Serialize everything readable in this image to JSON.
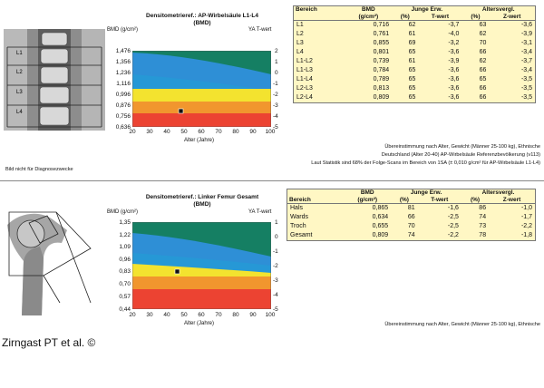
{
  "top": {
    "chart": {
      "title_line1": "Densitometrieref.: AP-Wirbelsäule L1-L4",
      "title_line2": "(BMD)",
      "bmd_axis_label": "BMD (g/cm²)",
      "t_axis_label": "YA T-wert",
      "bmd_ticks": [
        "1,476",
        "1,356",
        "1,236",
        "1,116",
        "0,996",
        "0,876",
        "0,756",
        "0,636"
      ],
      "t_ticks": [
        "2",
        "1",
        "0",
        "-1",
        "-2",
        "-3",
        "-4",
        "-5"
      ],
      "age_ticks": [
        "20",
        "30",
        "40",
        "50",
        "60",
        "70",
        "80",
        "90",
        "100"
      ],
      "age_axis_label": "Alter (Jahre)"
    },
    "xray_labels": [
      "L1",
      "L2",
      "L3",
      "L4"
    ],
    "table": {
      "head_row1": [
        "Bereich",
        "BMD",
        "Junge Erw.",
        "",
        "Altersvergl.",
        ""
      ],
      "head_row2": [
        "",
        "(g/cm²)",
        "(%)",
        "T-wert",
        "(%)",
        "Z-wert"
      ],
      "rows": [
        [
          "L1",
          "0,716",
          "62",
          "-3,7",
          "63",
          "-3,6"
        ],
        [
          "L2",
          "0,761",
          "61",
          "-4,0",
          "62",
          "-3,9"
        ],
        [
          "L3",
          "0,855",
          "69",
          "-3,2",
          "70",
          "-3,1"
        ],
        [
          "L4",
          "0,801",
          "65",
          "-3,6",
          "66",
          "-3,4"
        ],
        [
          "L1-L2",
          "0,739",
          "61",
          "-3,9",
          "62",
          "-3,7"
        ],
        [
          "L1-L3",
          "0,784",
          "65",
          "-3,6",
          "66",
          "-3,4"
        ],
        [
          "L1-L4",
          "0,789",
          "65",
          "-3,6",
          "65",
          "-3,5"
        ],
        [
          "L2-L3",
          "0,813",
          "65",
          "-3,6",
          "66",
          "-3,5"
        ],
        [
          "L2-L4",
          "0,809",
          "65",
          "-3,6",
          "66",
          "-3,5"
        ]
      ]
    },
    "notes": [
      "Übereinstimmung nach Alter, Gewicht (Männer 25-100 kg), Ethnische",
      "Deutschland (Alter 20-40) AP-Wirbelsäule Referenzbevölkerung (v113)",
      "Laut Statistik sind 68% der Folge-Scans im Bereich von 1SA (± 0,010 g/cm² für AP-Wirbelsäule L1-L4)"
    ],
    "disclaimer": "Bild nicht für Diagnosezwecke"
  },
  "bottom": {
    "chart": {
      "title_line1": "Densitometrieref.: Linker Femur Gesamt",
      "title_line2": "(BMD)",
      "bmd_axis_label": "BMD (g/cm²)",
      "t_axis_label": "YA T-wert",
      "bmd_ticks": [
        "1,35",
        "1,22",
        "1,09",
        "0,96",
        "0,83",
        "0,70",
        "0,57",
        "0,44"
      ],
      "t_ticks": [
        "1",
        "0",
        "-1",
        "-2",
        "-3",
        "-4",
        "-5"
      ],
      "age_ticks": [
        "20",
        "30",
        "40",
        "50",
        "60",
        "70",
        "80",
        "90",
        "100"
      ],
      "age_axis_label": "Alter (Jahre)"
    },
    "table": {
      "head_row1": [
        "",
        "BMD",
        "Junge Erw.",
        "",
        "Altersvergl.",
        ""
      ],
      "head_row2": [
        "Bereich",
        "(g/cm²)",
        "(%)",
        "T-wert",
        "(%)",
        "Z-wert"
      ],
      "rows": [
        [
          "Hals",
          "0,865",
          "81",
          "-1,6",
          "86",
          "-1,0"
        ],
        [
          "Wards",
          "0,634",
          "66",
          "-2,5",
          "74",
          "-1,7"
        ],
        [
          "Troch",
          "0,655",
          "70",
          "-2,5",
          "73",
          "-2,2"
        ],
        [
          "Gesamt",
          "0,809",
          "74",
          "-2,2",
          "78",
          "-1,8"
        ]
      ]
    },
    "notes": [
      "Übereinstimmung nach Alter, Gewicht (Männer 25-100 kg), Ethnische"
    ]
  },
  "caption": "Zirngast PT et al. ©",
  "colors": {
    "green": "#157f63",
    "blue": "#2e8fd6",
    "yellow": "#f3e32f",
    "orange": "#f1962e",
    "red": "#ec4332",
    "table_bg": "#fff7c4"
  }
}
